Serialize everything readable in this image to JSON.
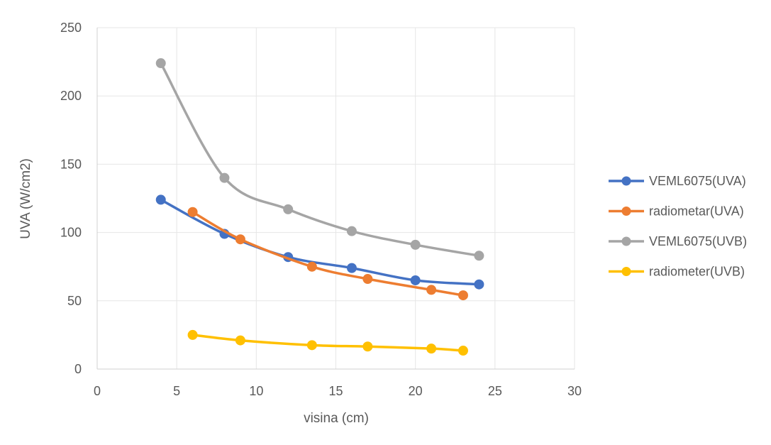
{
  "chart_data": {
    "type": "line",
    "title": "",
    "xlabel": "visina (cm)",
    "ylabel": "UVA (W/cm2)",
    "xlim": [
      0,
      30
    ],
    "ylim": [
      0,
      250
    ],
    "x_ticks": [
      "0",
      "5",
      "10",
      "15",
      "20",
      "25",
      "30"
    ],
    "y_ticks": [
      "0",
      "50",
      "100",
      "150",
      "200",
      "250"
    ],
    "grid": true,
    "legend_position": "right",
    "series": [
      {
        "name": "VEML6075(UVA)",
        "color": "#4472C4",
        "points": [
          [
            4,
            124
          ],
          [
            8,
            99
          ],
          [
            12,
            82
          ],
          [
            16,
            74
          ],
          [
            20,
            65
          ],
          [
            24,
            62
          ]
        ]
      },
      {
        "name": "radiometar(UVA)",
        "color": "#ED7D31",
        "points": [
          [
            6,
            115
          ],
          [
            9,
            95
          ],
          [
            13.5,
            75
          ],
          [
            17,
            66
          ],
          [
            21,
            58
          ],
          [
            23,
            54
          ]
        ]
      },
      {
        "name": "VEML6075(UVB)",
        "color": "#A5A5A5",
        "points": [
          [
            4,
            224
          ],
          [
            8,
            140
          ],
          [
            12,
            117
          ],
          [
            16,
            101
          ],
          [
            20,
            91
          ],
          [
            24,
            83
          ]
        ]
      },
      {
        "name": "radiometer(UVB)",
        "color": "#FFC000",
        "points": [
          [
            6,
            25
          ],
          [
            9,
            21
          ],
          [
            13.5,
            17.5
          ],
          [
            17,
            16.5
          ],
          [
            21,
            15
          ],
          [
            23,
            13.5
          ]
        ]
      }
    ]
  }
}
